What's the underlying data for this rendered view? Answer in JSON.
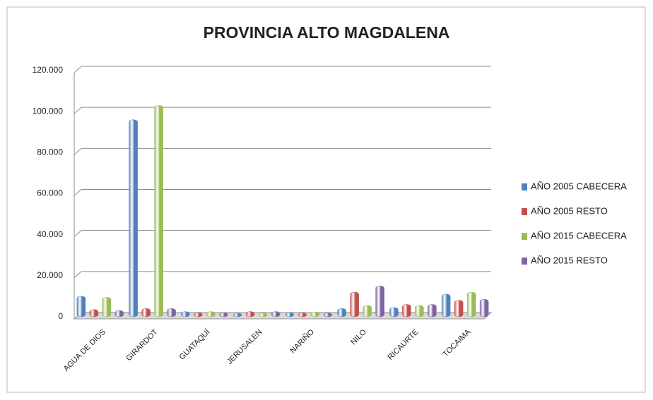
{
  "chart_data": {
    "type": "bar",
    "title": "PROVINCIA ALTO MAGDALENA",
    "categories": [
      "AGUA DE DIOS",
      "GIRARDOT",
      "GUATAQUÍ",
      "JERUSALEN",
      "NARIÑO",
      "NILO",
      "RICAURTE",
      "TOCAIMA"
    ],
    "series": [
      {
        "name": "AÑO 2005 CABECERA",
        "color": "#4f81bd",
        "values": [
          9000,
          95000,
          1500,
          700,
          1000,
          3000,
          3500,
          10000
        ]
      },
      {
        "name": "AÑO 2005 RESTO",
        "color": "#c0504d",
        "values": [
          2500,
          3000,
          1000,
          1500,
          900,
          11000,
          5000,
          7000
        ]
      },
      {
        "name": "AÑO 2015 CABECERA",
        "color": "#9bbb59",
        "values": [
          8500,
          102000,
          1500,
          800,
          1300,
          4500,
          4500,
          11000
        ]
      },
      {
        "name": "AÑO 2015 RESTO",
        "color": "#8064a2",
        "values": [
          2000,
          3000,
          1000,
          1500,
          800,
          14000,
          5000,
          7500
        ]
      }
    ],
    "ylim": [
      0,
      120000
    ],
    "yticks": [
      0,
      {
        "value": 20000,
        "label": "20.000"
      },
      {
        "value": 40000,
        "label": "40.000"
      },
      {
        "value": 60000,
        "label": "60.000"
      },
      {
        "value": 80000,
        "label": "80.000"
      },
      {
        "value": 100000,
        "label": "100.000"
      },
      {
        "value": 120000,
        "label": "120.000"
      }
    ],
    "grid": true,
    "legend": "right"
  }
}
